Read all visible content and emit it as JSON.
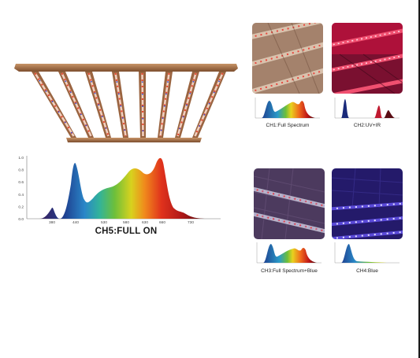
{
  "main": {
    "label": "CH5:FULL ON",
    "y_ticks": [
      "1.0",
      "0.8",
      "0.6",
      "0.4",
      "0.2",
      "0.0"
    ],
    "x_ticks": [
      "380",
      "440",
      "530",
      "580",
      "630",
      "660",
      "730"
    ]
  },
  "channels": [
    {
      "label": "CH1:Full Spectrum"
    },
    {
      "label": "CH2:UV+IR"
    },
    {
      "label": "CH3:Full Spectrum+Blue"
    },
    {
      "label": "CH4:Blue"
    }
  ],
  "colors": {
    "frame": "#a86a3e",
    "led_red": "#e8452c",
    "led_blue": "#2a4ad8",
    "uv_purple": "#5a2aa8"
  }
}
